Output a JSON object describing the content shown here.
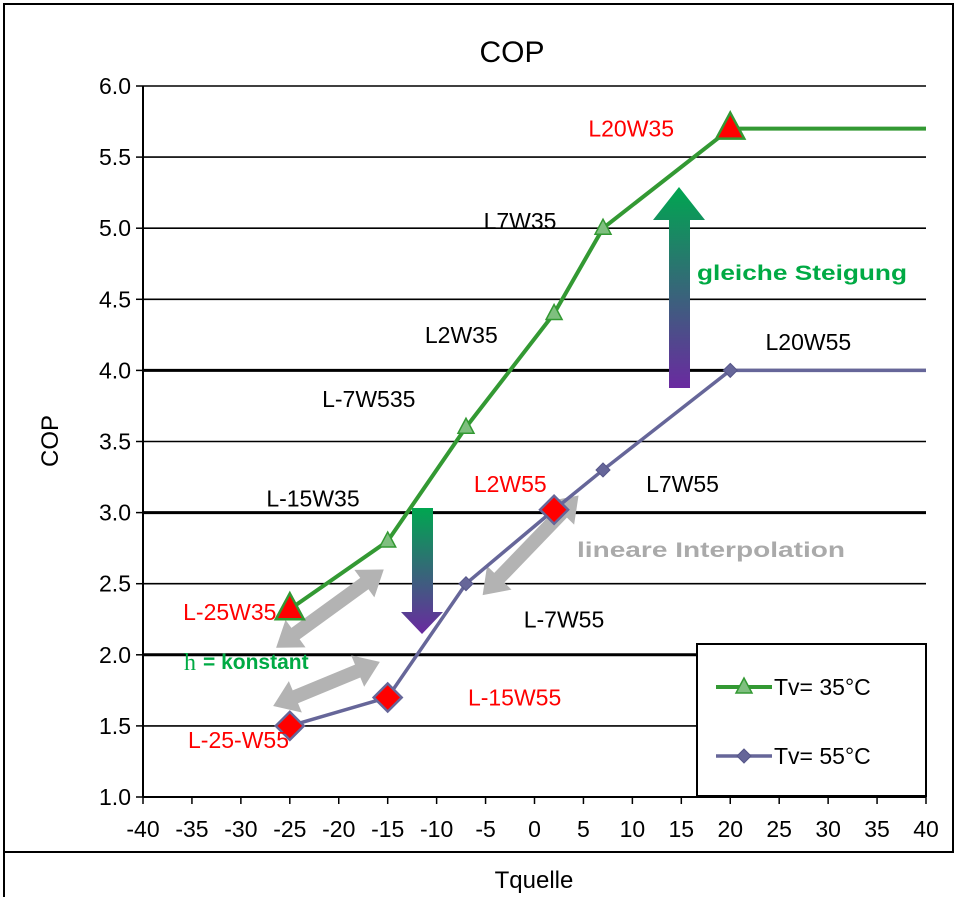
{
  "chart_data": {
    "type": "line",
    "title": "COP",
    "xlabel": "Tquelle",
    "ylabel": "COP",
    "xlim": [
      -40,
      40
    ],
    "ylim": [
      1.0,
      6.0
    ],
    "x_ticks": [
      "-40",
      "-35",
      "-30",
      "-25",
      "-20",
      "-15",
      "-10",
      "-5",
      "0",
      "5",
      "10",
      "15",
      "20",
      "25",
      "30",
      "35",
      "40"
    ],
    "y_ticks": [
      "1.0",
      "1.5",
      "2.0",
      "2.5",
      "3.0",
      "3.5",
      "4.0",
      "4.5",
      "5.0",
      "5.5",
      "6.0"
    ],
    "grid": "horizontal",
    "legend_position": "bottom-right",
    "series": [
      {
        "name": "Tv= 35°C",
        "color": "#339933",
        "marker": "triangle",
        "points": [
          {
            "x": -25,
            "y": 2.32
          },
          {
            "x": -15,
            "y": 2.8
          },
          {
            "x": -7,
            "y": 3.6
          },
          {
            "x": 2,
            "y": 4.4
          },
          {
            "x": 7,
            "y": 5.0
          },
          {
            "x": 20,
            "y": 5.7
          }
        ],
        "extension_to_x": 40,
        "extension_y": 5.7
      },
      {
        "name": "Tv= 55°C",
        "color": "#666699",
        "marker": "diamond",
        "points": [
          {
            "x": -25,
            "y": 1.5
          },
          {
            "x": -15,
            "y": 1.7
          },
          {
            "x": -7,
            "y": 2.5
          },
          {
            "x": 2,
            "y": 3.02
          },
          {
            "x": 7,
            "y": 3.3
          },
          {
            "x": 20,
            "y": 4.0
          }
        ],
        "extension_to_x": 40,
        "extension_y": 4.0
      }
    ],
    "highlight_markers": [
      {
        "series": 0,
        "x": -25,
        "y": 2.32,
        "shape": "triangle",
        "color": "#ff0000"
      },
      {
        "series": 0,
        "x": 20,
        "y": 5.7,
        "shape": "triangle",
        "color": "#ff0000"
      },
      {
        "series": 1,
        "x": -25,
        "y": 1.5,
        "shape": "diamond",
        "color": "#ff0000"
      },
      {
        "series": 1,
        "x": -15,
        "y": 1.7,
        "shape": "diamond",
        "color": "#ff0000"
      },
      {
        "series": 1,
        "x": 2,
        "y": 3.02,
        "shape": "diamond",
        "color": "#ff0000"
      }
    ],
    "point_labels": [
      {
        "text": "L-25W35",
        "x": -35.9,
        "y": 2.3,
        "color": "#ff0000"
      },
      {
        "text": "L-15W35",
        "x": -27.4,
        "y": 3.1,
        "color": "#000000"
      },
      {
        "text": "L-7W535",
        "x": -21.7,
        "y": 3.8,
        "color": "#000000"
      },
      {
        "text": "L2W35",
        "x": -11.2,
        "y": 4.25,
        "color": "#000000"
      },
      {
        "text": "L7W35",
        "x": -5.2,
        "y": 5.05,
        "color": "#000000"
      },
      {
        "text": "L20W35",
        "x": 5.5,
        "y": 5.7,
        "color": "#ff0000"
      },
      {
        "text": "L2W55",
        "x": -6.2,
        "y": 3.2,
        "color": "#ff0000"
      },
      {
        "text": "L7W55",
        "x": 11.4,
        "y": 3.2,
        "color": "#000000"
      },
      {
        "text": "L-7W55",
        "x": -1.1,
        "y": 2.25,
        "color": "#000000"
      },
      {
        "text": "L-15W55",
        "x": -6.8,
        "y": 1.7,
        "color": "#ff0000"
      },
      {
        "text": "L-25-W55",
        "x": -35.4,
        "y": 1.4,
        "color": "#ff0000"
      },
      {
        "text": "L20W55",
        "x": 23.6,
        "y": 4.2,
        "color": "#000000"
      }
    ],
    "annotations": [
      {
        "text": "gleiche Steigung",
        "color": "#00aa44"
      },
      {
        "text": "lineare Interpolation",
        "color": "#aaaaaa"
      },
      {
        "text_prefix": "h",
        "text": "= konstant",
        "color": "#00aa44"
      }
    ]
  }
}
